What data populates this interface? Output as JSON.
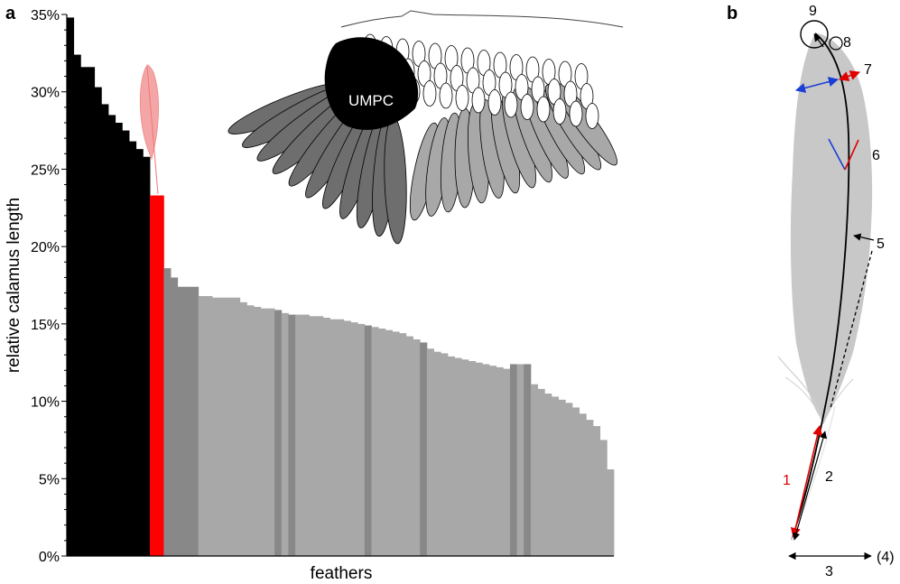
{
  "panels": {
    "a": "a",
    "b": "b"
  },
  "chart_data": {
    "type": "bar",
    "title": "",
    "xlabel": "feathers",
    "ylabel": "relative calamus length",
    "ylim": [
      0,
      35
    ],
    "y_ticks": [
      "0%",
      "5%",
      "10%",
      "15%",
      "20%",
      "25%",
      "30%",
      "35%"
    ],
    "y_tick_values": [
      0,
      5,
      10,
      15,
      20,
      25,
      30,
      35
    ],
    "grid": false,
    "colors": {
      "black": "#000000",
      "red": "#ff0000",
      "dark": "#888888",
      "light": "#a8a8a8"
    },
    "series": [
      {
        "color": "black",
        "values": [
          34.8,
          32.4,
          31.6,
          31.6,
          30.3,
          29.2,
          28.5,
          28.0,
          27.5,
          26.8,
          26.3,
          25.8
        ]
      },
      {
        "color": "red",
        "values": [
          23.3,
          23.3
        ]
      },
      {
        "color": "dark",
        "values": [
          18.6,
          18.0,
          17.4,
          17.4,
          17.4
        ]
      },
      {
        "color": "light",
        "values": [
          16.8,
          16.8,
          16.7,
          16.7,
          16.7,
          16.7,
          16.4,
          16.2,
          16.1,
          16.0,
          16.0
        ]
      },
      {
        "color": "dark",
        "values": [
          15.9
        ]
      },
      {
        "color": "light",
        "values": [
          15.7
        ]
      },
      {
        "color": "dark",
        "values": [
          15.6
        ]
      },
      {
        "color": "light",
        "values": [
          15.6,
          15.6,
          15.5,
          15.5,
          15.4,
          15.3,
          15.3,
          15.2,
          15.1,
          15.0
        ]
      },
      {
        "color": "dark",
        "values": [
          14.9
        ]
      },
      {
        "color": "light",
        "values": [
          14.8,
          14.7,
          14.6,
          14.5,
          14.4,
          14.2,
          14.0
        ]
      },
      {
        "color": "dark",
        "values": [
          13.8
        ]
      },
      {
        "color": "light",
        "values": [
          13.4,
          13.2,
          13.1,
          12.9,
          12.8,
          12.7,
          12.6,
          12.5,
          12.4,
          12.3,
          12.2,
          12.1
        ]
      },
      {
        "color": "dark",
        "values": [
          12.4
        ]
      },
      {
        "color": "light",
        "values": [
          12.4
        ]
      },
      {
        "color": "dark",
        "values": [
          12.4
        ]
      },
      {
        "color": "light",
        "values": [
          11.1,
          10.8,
          10.5,
          10.3,
          10.1,
          9.9,
          9.6,
          9.2,
          8.8,
          8.4,
          7.5,
          5.6
        ]
      }
    ],
    "inset_label": "UMPC"
  },
  "feather_diagram": {
    "labels": {
      "n1": "1",
      "n2": "2",
      "n3": "3",
      "n4": "(4)",
      "n5": "5",
      "n6": "6",
      "n7": "7",
      "n8": "8",
      "n9": "9"
    }
  }
}
